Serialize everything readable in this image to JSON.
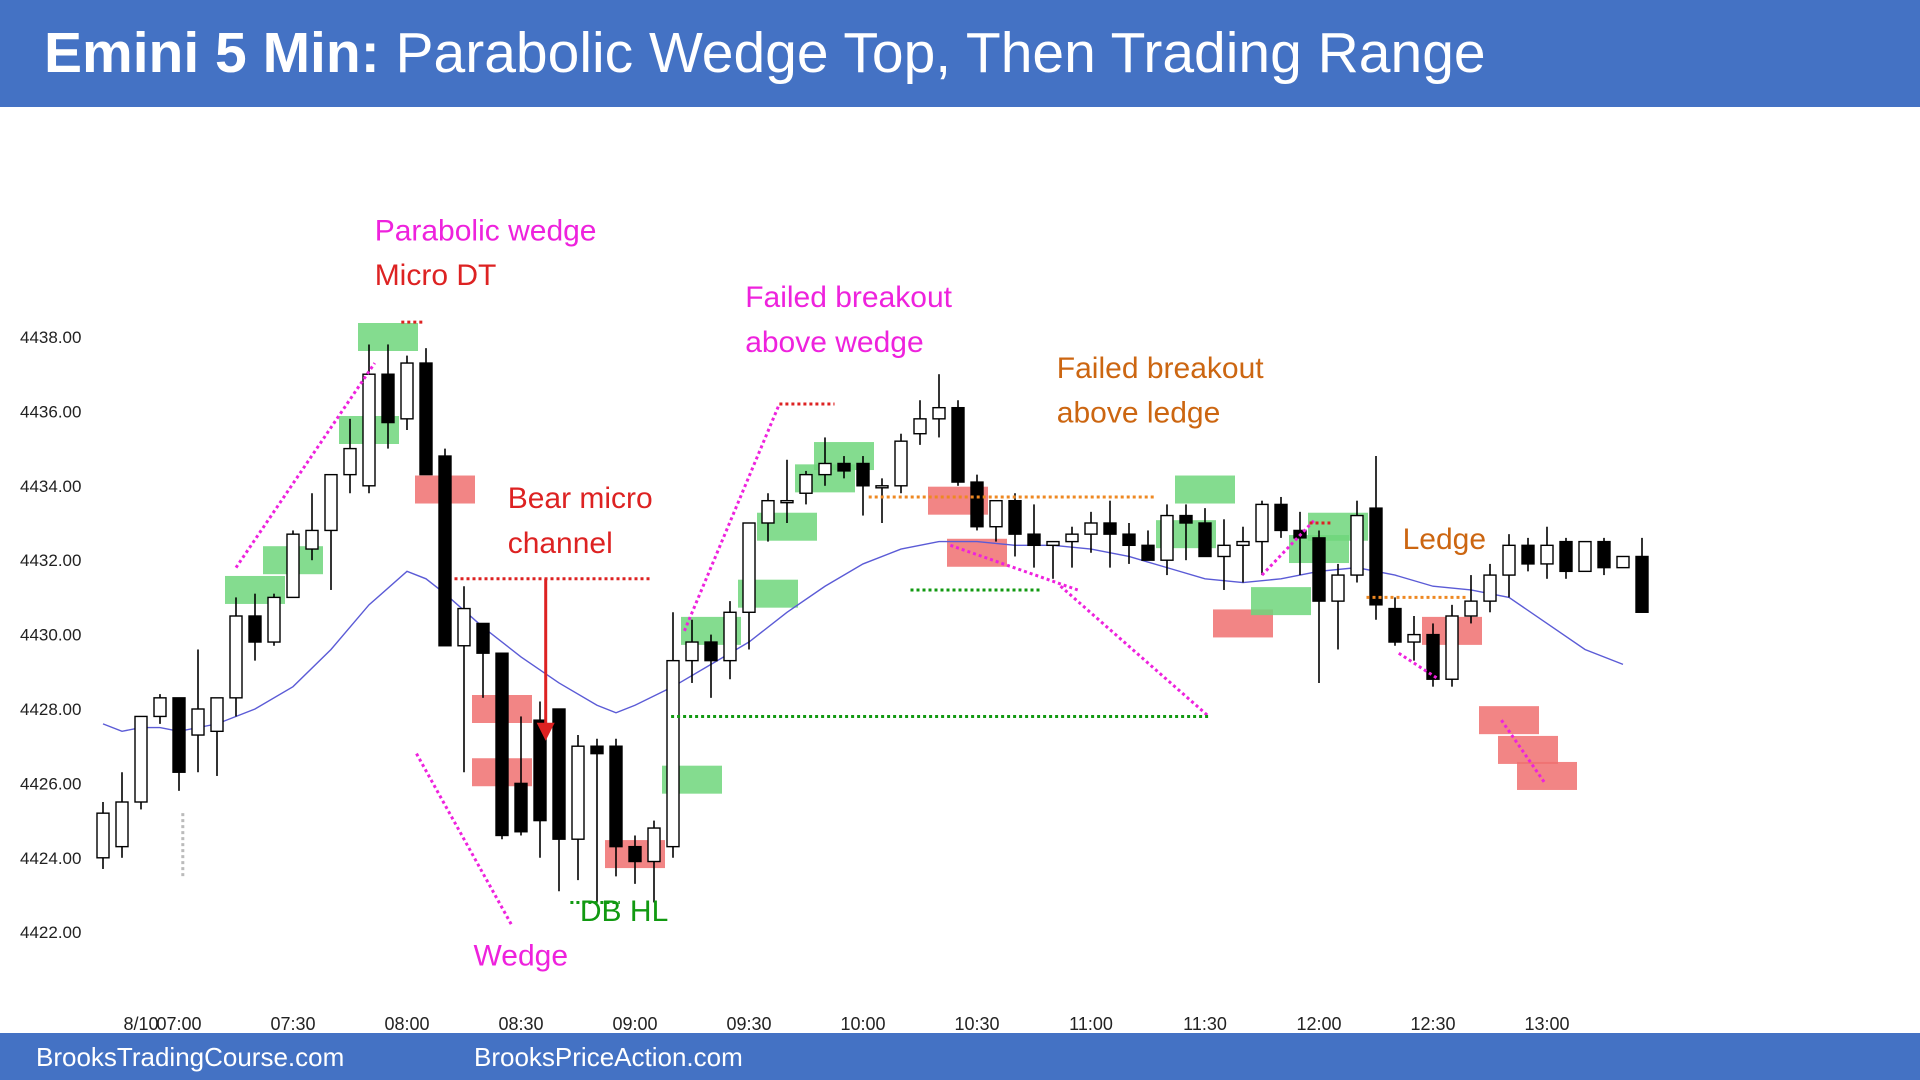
{
  "title": {
    "bold": "Emini 5 Min:",
    "rest": " Parabolic Wedge Top, Then Trading Range"
  },
  "footer": {
    "left": "BrooksTradingCourse.com",
    "right": "BrooksPriceAction.com"
  },
  "chart_data": {
    "type": "candlestick",
    "title": "Emini 5 Min: Parabolic Wedge Top, Then Trading Range",
    "ylim": [
      4421,
      4440
    ],
    "y_ticks": [
      "4438.00",
      "4436.00",
      "4434.00",
      "4432.00",
      "4430.00",
      "4428.00",
      "4426.00",
      "4424.00",
      "4422.00"
    ],
    "x_ticks": [
      {
        "bar": 2,
        "label": "8/10"
      },
      {
        "bar": 4,
        "label": "07:00"
      },
      {
        "bar": 10,
        "label": "07:30"
      },
      {
        "bar": 16,
        "label": "08:00"
      },
      {
        "bar": 22,
        "label": "08:30"
      },
      {
        "bar": 28,
        "label": "09:00"
      },
      {
        "bar": 34,
        "label": "09:30"
      },
      {
        "bar": 40,
        "label": "10:00"
      },
      {
        "bar": 46,
        "label": "10:30"
      },
      {
        "bar": 52,
        "label": "11:00"
      },
      {
        "bar": 58,
        "label": "11:30"
      },
      {
        "bar": 64,
        "label": "12:00"
      },
      {
        "bar": 70,
        "label": "12:30"
      },
      {
        "bar": 76,
        "label": "13:00"
      }
    ],
    "colors": {
      "bull": "#ffffff",
      "bear": "#000000",
      "ema": "#5b5bd6",
      "buy": "#6fd67b",
      "sell": "#f07070"
    },
    "bars": [
      [
        4424.0,
        4425.5,
        4423.7,
        4425.2
      ],
      [
        4424.3,
        4426.3,
        4424.0,
        4425.5
      ],
      [
        4425.5,
        4427.8,
        4425.3,
        4427.8
      ],
      [
        4427.8,
        4428.4,
        4427.6,
        4428.3
      ],
      [
        4428.3,
        4428.3,
        4425.8,
        4426.3
      ],
      [
        4427.3,
        4429.6,
        4426.3,
        4428.0
      ],
      [
        4427.4,
        4428.3,
        4426.2,
        4428.3
      ],
      [
        4428.3,
        4431.0,
        4427.8,
        4430.5
      ],
      [
        4430.5,
        4431.1,
        4429.3,
        4429.8
      ],
      [
        4429.8,
        4431.1,
        4429.7,
        4431.0
      ],
      [
        4431.0,
        4432.8,
        4431.0,
        4432.7
      ],
      [
        4432.3,
        4433.8,
        4432.0,
        4432.8
      ],
      [
        4432.8,
        4433.6,
        4431.2,
        4434.3
      ],
      [
        4434.3,
        4435.8,
        4433.8,
        4435.0
      ],
      [
        4434.0,
        4437.8,
        4433.8,
        4437.0
      ],
      [
        4437.0,
        4437.8,
        4435.0,
        4435.7
      ],
      [
        4435.8,
        4437.5,
        4435.5,
        4437.3
      ],
      [
        4437.3,
        4437.7,
        4434.3,
        4434.3
      ],
      [
        4434.8,
        4435.0,
        4429.7,
        4429.7
      ],
      [
        4429.7,
        4431.3,
        4426.3,
        4430.7
      ],
      [
        4430.3,
        4430.3,
        4428.3,
        4429.5
      ],
      [
        4429.5,
        4429.5,
        4424.5,
        4424.6
      ],
      [
        4426.0,
        4427.8,
        4424.6,
        4424.7
      ],
      [
        4427.7,
        4428.2,
        4424.0,
        4425.0
      ],
      [
        4428.0,
        4428.0,
        4423.1,
        4424.5
      ],
      [
        4424.5,
        4427.3,
        4423.4,
        4427.0
      ],
      [
        4427.0,
        4427.2,
        4422.8,
        4426.8
      ],
      [
        4427.0,
        4427.2,
        4423.5,
        4424.3
      ],
      [
        4424.3,
        4424.6,
        4423.3,
        4423.9
      ],
      [
        4423.9,
        4425.0,
        4422.8,
        4424.8
      ],
      [
        4424.3,
        4430.6,
        4424.0,
        4429.3
      ],
      [
        4429.3,
        4430.4,
        4428.7,
        4429.8
      ],
      [
        4429.8,
        4430.0,
        4428.3,
        4429.3
      ],
      [
        4429.3,
        4430.9,
        4428.8,
        4430.6
      ],
      [
        4430.6,
        4432.5,
        4429.6,
        4433.0
      ],
      [
        4433.0,
        4433.8,
        4432.5,
        4433.6
      ],
      [
        4433.6,
        4434.7,
        4433.0,
        4433.6
      ],
      [
        4433.8,
        4434.4,
        4433.5,
        4434.3
      ],
      [
        4434.3,
        4435.3,
        4434.0,
        4434.6
      ],
      [
        4434.6,
        4434.8,
        4434.2,
        4434.4
      ],
      [
        4434.6,
        4434.8,
        4433.2,
        4434.0
      ],
      [
        4434.0,
        4434.2,
        4433.0,
        4434.0
      ],
      [
        4434.0,
        4435.4,
        4433.8,
        4435.2
      ],
      [
        4435.4,
        4436.3,
        4435.1,
        4435.8
      ],
      [
        4435.8,
        4437.0,
        4435.3,
        4436.1
      ],
      [
        4436.1,
        4436.3,
        4434.0,
        4434.1
      ],
      [
        4434.1,
        4434.3,
        4432.8,
        4432.9
      ],
      [
        4432.9,
        4433.3,
        4432.5,
        4433.6
      ],
      [
        4433.6,
        4433.8,
        4432.1,
        4432.7
      ],
      [
        4432.7,
        4433.5,
        4431.8,
        4432.4
      ],
      [
        4432.4,
        4432.5,
        4431.5,
        4432.5
      ],
      [
        4432.5,
        4432.9,
        4431.8,
        4432.7
      ],
      [
        4432.7,
        4433.3,
        4432.2,
        4433.0
      ],
      [
        4433.0,
        4433.6,
        4431.8,
        4432.7
      ],
      [
        4432.7,
        4433.0,
        4431.9,
        4432.4
      ],
      [
        4432.4,
        4432.8,
        4432.0,
        4432.0
      ],
      [
        4432.0,
        4433.5,
        4431.6,
        4433.2
      ],
      [
        4433.2,
        4433.5,
        4432.0,
        4433.0
      ],
      [
        4433.0,
        4433.4,
        4432.1,
        4432.1
      ],
      [
        4432.1,
        4433.1,
        4431.2,
        4432.4
      ],
      [
        4432.4,
        4432.9,
        4431.4,
        4432.5
      ],
      [
        4432.5,
        4433.6,
        4431.6,
        4433.5
      ],
      [
        4433.5,
        4433.7,
        4432.6,
        4432.8
      ],
      [
        4432.8,
        4433.3,
        4431.6,
        4432.6
      ],
      [
        4432.6,
        4432.8,
        4428.7,
        4430.9
      ],
      [
        4430.9,
        4431.9,
        4429.6,
        4431.6
      ],
      [
        4431.6,
        4433.6,
        4431.4,
        4433.2
      ],
      [
        4433.4,
        4434.8,
        4430.4,
        4430.8
      ],
      [
        4430.7,
        4431.0,
        4429.7,
        4429.8
      ],
      [
        4429.8,
        4430.5,
        4429.3,
        4430.0
      ],
      [
        4430.0,
        4430.3,
        4428.6,
        4428.8
      ],
      [
        4428.8,
        4430.8,
        4428.6,
        4430.5
      ],
      [
        4430.5,
        4431.6,
        4430.3,
        4430.9
      ],
      [
        4430.9,
        4431.9,
        4430.6,
        4431.6
      ],
      [
        4431.6,
        4432.7,
        4431.0,
        4432.4
      ],
      [
        4432.4,
        4432.6,
        4431.7,
        4431.9
      ],
      [
        4431.9,
        4432.9,
        4431.5,
        4432.4
      ],
      [
        4432.5,
        4432.6,
        4431.5,
        4431.7
      ],
      [
        4431.7,
        4432.5,
        4431.7,
        4432.5
      ],
      [
        4432.5,
        4432.6,
        4431.6,
        4431.8
      ],
      [
        4431.8,
        4432.1,
        4431.8,
        4432.1
      ],
      [
        4432.1,
        4432.6,
        4430.6,
        4430.6
      ]
    ],
    "ema": [
      [
        0,
        4427.6
      ],
      [
        1,
        4427.4
      ],
      [
        2,
        4427.5
      ],
      [
        3,
        4427.5
      ],
      [
        4,
        4427.4
      ],
      [
        6,
        4427.6
      ],
      [
        8,
        4428.0
      ],
      [
        10,
        4428.6
      ],
      [
        12,
        4429.6
      ],
      [
        14,
        4430.8
      ],
      [
        16,
        4431.7
      ],
      [
        17,
        4431.5
      ],
      [
        18,
        4431.1
      ],
      [
        20,
        4430.2
      ],
      [
        22,
        4429.4
      ],
      [
        24,
        4428.7
      ],
      [
        26,
        4428.1
      ],
      [
        27,
        4427.9
      ],
      [
        28,
        4428.1
      ],
      [
        30,
        4428.6
      ],
      [
        32,
        4429.2
      ],
      [
        34,
        4429.8
      ],
      [
        36,
        4430.6
      ],
      [
        38,
        4431.3
      ],
      [
        40,
        4431.9
      ],
      [
        42,
        4432.3
      ],
      [
        44,
        4432.5
      ],
      [
        46,
        4432.5
      ],
      [
        48,
        4432.4
      ],
      [
        50,
        4432.4
      ],
      [
        52,
        4432.3
      ],
      [
        54,
        4432.1
      ],
      [
        56,
        4431.8
      ],
      [
        58,
        4431.5
      ],
      [
        60,
        4431.4
      ],
      [
        62,
        4431.5
      ],
      [
        64,
        4431.7
      ],
      [
        66,
        4431.8
      ],
      [
        68,
        4431.6
      ],
      [
        70,
        4431.3
      ],
      [
        72,
        4431.2
      ],
      [
        74,
        4431.0
      ],
      [
        76,
        4430.3
      ],
      [
        78,
        4429.6
      ],
      [
        80,
        4429.2
      ]
    ],
    "highlights": [
      {
        "bar": 8,
        "price": 4431.2,
        "kind": "buy"
      },
      {
        "bar": 10,
        "price": 4432.0,
        "kind": "buy"
      },
      {
        "bar": 14,
        "price": 4435.5,
        "kind": "buy"
      },
      {
        "bar": 15,
        "price": 4438.0,
        "kind": "buy"
      },
      {
        "bar": 18,
        "price": 4433.9,
        "kind": "sell"
      },
      {
        "bar": 21,
        "price": 4428.0,
        "kind": "sell"
      },
      {
        "bar": 21,
        "price": 4426.3,
        "kind": "sell"
      },
      {
        "bar": 28,
        "price": 4424.1,
        "kind": "sell"
      },
      {
        "bar": 31,
        "price": 4426.1,
        "kind": "buy"
      },
      {
        "bar": 32,
        "price": 4430.1,
        "kind": "buy"
      },
      {
        "bar": 35,
        "price": 4431.1,
        "kind": "buy"
      },
      {
        "bar": 36,
        "price": 4432.9,
        "kind": "buy"
      },
      {
        "bar": 38,
        "price": 4434.2,
        "kind": "buy"
      },
      {
        "bar": 39,
        "price": 4434.8,
        "kind": "buy"
      },
      {
        "bar": 45,
        "price": 4433.6,
        "kind": "sell"
      },
      {
        "bar": 46,
        "price": 4432.2,
        "kind": "sell"
      },
      {
        "bar": 57,
        "price": 4432.7,
        "kind": "buy"
      },
      {
        "bar": 58,
        "price": 4433.9,
        "kind": "buy"
      },
      {
        "bar": 60,
        "price": 4430.3,
        "kind": "sell"
      },
      {
        "bar": 62,
        "price": 4430.9,
        "kind": "buy"
      },
      {
        "bar": 64,
        "price": 4432.3,
        "kind": "buy"
      },
      {
        "bar": 65,
        "price": 4432.9,
        "kind": "buy"
      },
      {
        "bar": 71,
        "price": 4430.1,
        "kind": "sell"
      },
      {
        "bar": 74,
        "price": 4427.7,
        "kind": "sell"
      },
      {
        "bar": 75,
        "price": 4426.9,
        "kind": "sell"
      },
      {
        "bar": 76,
        "price": 4426.2,
        "kind": "sell"
      }
    ],
    "lines": [
      {
        "from": [
          7,
          4431.8
        ],
        "to": [
          14.3,
          4437.3
        ],
        "color": "#ee22dd",
        "style": "dot"
      },
      {
        "from": [
          16.5,
          4426.8
        ],
        "to": [
          21.5,
          4422.2
        ],
        "color": "#ee22dd",
        "style": "dot"
      },
      {
        "from": [
          30.6,
          4430.1
        ],
        "to": [
          35.6,
          4436.2
        ],
        "color": "#ee22dd",
        "style": "dot"
      },
      {
        "from": [
          44.6,
          4432.4
        ],
        "to": [
          51.3,
          4431.2
        ],
        "color": "#ee22dd",
        "style": "dot"
      },
      {
        "from": [
          50.4,
          4431.3
        ],
        "to": [
          58.2,
          4427.8
        ],
        "color": "#ee22dd",
        "style": "dot"
      },
      {
        "from": [
          61,
          4431.6
        ],
        "to": [
          63.8,
          4433.1
        ],
        "color": "#ee22dd",
        "style": "dot"
      },
      {
        "from": [
          68.2,
          4429.5
        ],
        "to": [
          70.3,
          4428.8
        ],
        "color": "#ee22dd",
        "style": "dot"
      },
      {
        "from": [
          73.6,
          4427.7
        ],
        "to": [
          75.9,
          4426.0
        ],
        "color": "#ee22dd",
        "style": "dot"
      },
      {
        "from": [
          15.7,
          4438.4
        ],
        "to": [
          16.9,
          4438.4
        ],
        "color": "#dd2222",
        "style": "dot"
      },
      {
        "from": [
          18.5,
          4431.5
        ],
        "to": [
          28.8,
          4431.5
        ],
        "color": "#dd2222",
        "style": "dot"
      },
      {
        "from": [
          35.6,
          4436.2
        ],
        "to": [
          38.5,
          4436.2
        ],
        "color": "#dd2222",
        "style": "dot"
      },
      {
        "from": [
          63.5,
          4433.0
        ],
        "to": [
          64.6,
          4433.0
        ],
        "color": "#dd2222",
        "style": "dot"
      },
      {
        "from": [
          24.6,
          4422.8
        ],
        "to": [
          27.2,
          4422.8
        ],
        "color": "#119911",
        "style": "dot"
      },
      {
        "from": [
          29.9,
          4427.8
        ],
        "to": [
          58.2,
          4427.8
        ],
        "color": "#119911",
        "style": "dot"
      },
      {
        "from": [
          42.5,
          4431.2
        ],
        "to": [
          49.3,
          4431.2
        ],
        "color": "#119911",
        "style": "dot"
      },
      {
        "from": [
          40.3,
          4433.7
        ],
        "to": [
          55.3,
          4433.7
        ],
        "color": "#ee8822",
        "style": "dot"
      },
      {
        "from": [
          66.5,
          4431.0
        ],
        "to": [
          71.8,
          4431.0
        ],
        "color": "#ee8822",
        "style": "dot"
      },
      {
        "from": [
          4.2,
          4425.2
        ],
        "to": [
          4.2,
          4423.5
        ],
        "color": "#bbbbbb",
        "style": "dot"
      }
    ],
    "arrows": [
      {
        "x": 23.3,
        "from": 4431.5,
        "to": 4427.2,
        "color": "#dd2222"
      }
    ],
    "annotations": [
      {
        "text": "Parabolic wedge",
        "bar": 14.3,
        "price": 4440.6,
        "color": "#ee22dd"
      },
      {
        "text": "Micro DT",
        "bar": 14.3,
        "price": 4439.4,
        "color": "#dd2222"
      },
      {
        "text": "Bear micro",
        "bar": 21.3,
        "price": 4433.4,
        "color": "#dd2222"
      },
      {
        "text": "channel",
        "bar": 21.3,
        "price": 4432.2,
        "color": "#dd2222"
      },
      {
        "text": "Wedge",
        "bar": 19.5,
        "price": 4421.1,
        "color": "#ee22dd"
      },
      {
        "text": "DB HL",
        "bar": 25.1,
        "price": 4422.3,
        "color": "#119911"
      },
      {
        "text": "Failed breakout",
        "bar": 33.8,
        "price": 4438.8,
        "color": "#ee22dd"
      },
      {
        "text": "above wedge",
        "bar": 33.8,
        "price": 4437.6,
        "color": "#ee22dd"
      },
      {
        "text": "Failed breakout",
        "bar": 50.2,
        "price": 4436.9,
        "color": "#cc6611"
      },
      {
        "text": "above ledge",
        "bar": 50.2,
        "price": 4435.7,
        "color": "#cc6611"
      },
      {
        "text": "Ledge",
        "bar": 68.4,
        "price": 4432.3,
        "color": "#cc6611"
      }
    ]
  }
}
